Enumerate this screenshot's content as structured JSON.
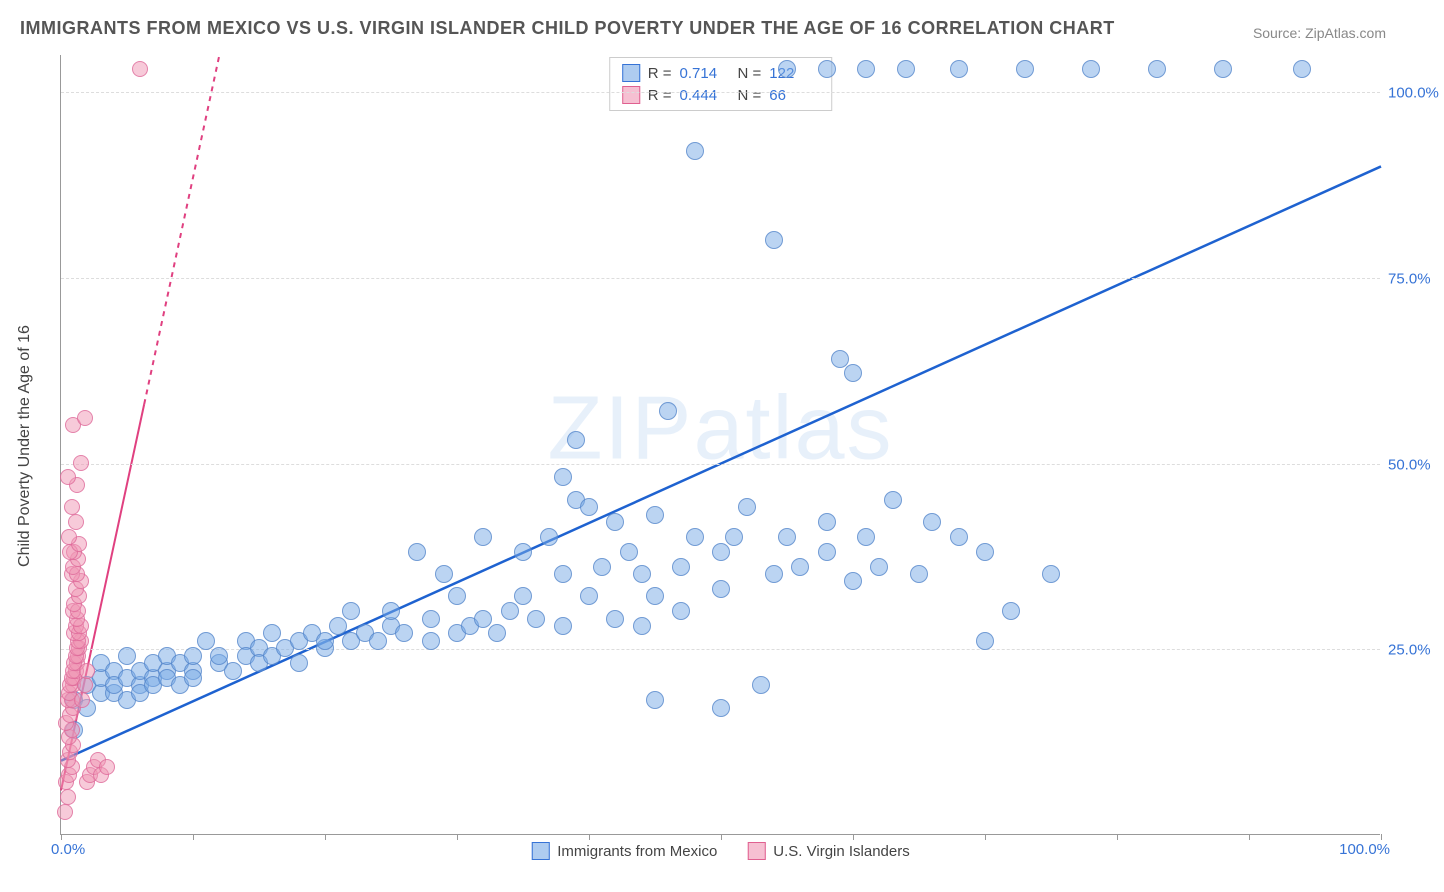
{
  "title": "IMMIGRANTS FROM MEXICO VS U.S. VIRGIN ISLANDER CHILD POVERTY UNDER THE AGE OF 16 CORRELATION CHART",
  "source_label": "Source: ZipAtlas.com",
  "y_axis_label": "Child Poverty Under the Age of 16",
  "watermark": "ZIPatlas",
  "chart": {
    "type": "scatter",
    "background_color": "#ffffff",
    "grid_color": "#dddddd",
    "axis_color": "#999999",
    "xlim": [
      0,
      100
    ],
    "ylim": [
      0,
      105
    ],
    "y_ticks": [
      25.0,
      50.0,
      75.0,
      100.0
    ],
    "y_tick_labels": [
      "25.0%",
      "50.0%",
      "75.0%",
      "100.0%"
    ],
    "x_ticks": [
      0,
      10,
      20,
      30,
      40,
      50,
      60,
      70,
      80,
      90,
      100
    ],
    "x_origin_label": "0.0%",
    "x_max_label": "100.0%",
    "series": [
      {
        "name": "Immigrants from Mexico",
        "color": "#78aae6",
        "border_color": "#3673d6",
        "marker_size": 18,
        "R": 0.714,
        "N": 122,
        "trend": {
          "x1": 0,
          "y1": 10,
          "x2": 100,
          "y2": 90,
          "color": "#1e62d0",
          "width": 2.5,
          "dash": "none"
        },
        "points": [
          [
            1,
            14
          ],
          [
            1,
            18
          ],
          [
            2,
            20
          ],
          [
            2,
            17
          ],
          [
            3,
            19
          ],
          [
            3,
            21
          ],
          [
            3,
            23
          ],
          [
            4,
            19
          ],
          [
            4,
            22
          ],
          [
            4,
            20
          ],
          [
            5,
            18
          ],
          [
            5,
            21
          ],
          [
            5,
            24
          ],
          [
            6,
            20
          ],
          [
            6,
            22
          ],
          [
            6,
            19
          ],
          [
            7,
            21
          ],
          [
            7,
            23
          ],
          [
            7,
            20
          ],
          [
            8,
            22
          ],
          [
            8,
            24
          ],
          [
            8,
            21
          ],
          [
            9,
            20
          ],
          [
            9,
            23
          ],
          [
            10,
            22
          ],
          [
            10,
            24
          ],
          [
            10,
            21
          ],
          [
            11,
            26
          ],
          [
            12,
            23
          ],
          [
            12,
            24
          ],
          [
            13,
            22
          ],
          [
            14,
            26
          ],
          [
            14,
            24
          ],
          [
            15,
            25
          ],
          [
            15,
            23
          ],
          [
            16,
            24
          ],
          [
            16,
            27
          ],
          [
            17,
            25
          ],
          [
            18,
            23
          ],
          [
            18,
            26
          ],
          [
            19,
            27
          ],
          [
            20,
            25
          ],
          [
            20,
            26
          ],
          [
            21,
            28
          ],
          [
            22,
            26
          ],
          [
            22,
            30
          ],
          [
            23,
            27
          ],
          [
            24,
            26
          ],
          [
            25,
            28
          ],
          [
            25,
            30
          ],
          [
            26,
            27
          ],
          [
            27,
            38
          ],
          [
            28,
            29
          ],
          [
            28,
            26
          ],
          [
            29,
            35
          ],
          [
            30,
            27
          ],
          [
            30,
            32
          ],
          [
            31,
            28
          ],
          [
            32,
            40
          ],
          [
            32,
            29
          ],
          [
            33,
            27
          ],
          [
            34,
            30
          ],
          [
            35,
            38
          ],
          [
            35,
            32
          ],
          [
            36,
            29
          ],
          [
            37,
            40
          ],
          [
            38,
            35
          ],
          [
            38,
            28
          ],
          [
            38,
            48
          ],
          [
            39,
            45
          ],
          [
            39,
            53
          ],
          [
            40,
            32
          ],
          [
            40,
            44
          ],
          [
            41,
            36
          ],
          [
            42,
            29
          ],
          [
            42,
            42
          ],
          [
            43,
            38
          ],
          [
            44,
            35
          ],
          [
            44,
            28
          ],
          [
            45,
            43
          ],
          [
            45,
            32
          ],
          [
            45,
            18
          ],
          [
            46,
            57
          ],
          [
            47,
            36
          ],
          [
            47,
            30
          ],
          [
            48,
            40
          ],
          [
            48,
            92
          ],
          [
            50,
            38
          ],
          [
            50,
            33
          ],
          [
            50,
            17
          ],
          [
            51,
            40
          ],
          [
            52,
            44
          ],
          [
            53,
            20
          ],
          [
            54,
            35
          ],
          [
            54,
            80
          ],
          [
            55,
            40
          ],
          [
            56,
            36
          ],
          [
            58,
            38
          ],
          [
            58,
            42
          ],
          [
            59,
            64
          ],
          [
            60,
            34
          ],
          [
            60,
            62
          ],
          [
            61,
            40
          ],
          [
            62,
            36
          ],
          [
            63,
            45
          ],
          [
            65,
            35
          ],
          [
            66,
            42
          ],
          [
            68,
            40
          ],
          [
            70,
            26
          ],
          [
            70,
            38
          ],
          [
            72,
            30
          ],
          [
            75,
            35
          ],
          [
            55,
            103
          ],
          [
            58,
            103
          ],
          [
            61,
            103
          ],
          [
            64,
            103
          ],
          [
            68,
            103
          ],
          [
            73,
            103
          ],
          [
            78,
            103
          ],
          [
            83,
            103
          ],
          [
            88,
            103
          ],
          [
            94,
            103
          ]
        ]
      },
      {
        "name": "U.S. Virgin Islanders",
        "color": "#f096b4",
        "border_color": "#e06090",
        "marker_size": 16,
        "R": 0.444,
        "N": 66,
        "trend": {
          "x1": 0,
          "y1": 6,
          "x2": 12,
          "y2": 105,
          "color": "#e04080",
          "width": 2,
          "dash": "4,4"
        },
        "trend_solid_end_y": 58,
        "points": [
          [
            0.3,
            3
          ],
          [
            0.5,
            5
          ],
          [
            0.4,
            7
          ],
          [
            0.6,
            8
          ],
          [
            0.8,
            9
          ],
          [
            0.5,
            10
          ],
          [
            0.7,
            11
          ],
          [
            0.9,
            12
          ],
          [
            0.6,
            13
          ],
          [
            0.8,
            14
          ],
          [
            0.4,
            15
          ],
          [
            0.7,
            16
          ],
          [
            0.9,
            17
          ],
          [
            0.5,
            18
          ],
          [
            0.8,
            18
          ],
          [
            0.6,
            19
          ],
          [
            0.9,
            20
          ],
          [
            0.7,
            20
          ],
          [
            1.0,
            21
          ],
          [
            0.8,
            21
          ],
          [
            1.1,
            22
          ],
          [
            0.9,
            22
          ],
          [
            1.2,
            23
          ],
          [
            1.0,
            23
          ],
          [
            1.3,
            24
          ],
          [
            1.1,
            24
          ],
          [
            1.4,
            25
          ],
          [
            1.2,
            25
          ],
          [
            1.5,
            26
          ],
          [
            1.3,
            26
          ],
          [
            1.0,
            27
          ],
          [
            1.4,
            27
          ],
          [
            1.1,
            28
          ],
          [
            1.5,
            28
          ],
          [
            1.2,
            29
          ],
          [
            0.9,
            30
          ],
          [
            1.3,
            30
          ],
          [
            1.0,
            31
          ],
          [
            1.4,
            32
          ],
          [
            1.1,
            33
          ],
          [
            1.5,
            34
          ],
          [
            0.8,
            35
          ],
          [
            1.2,
            35
          ],
          [
            0.9,
            36
          ],
          [
            1.3,
            37
          ],
          [
            1.0,
            38
          ],
          [
            0.7,
            38
          ],
          [
            1.4,
            39
          ],
          [
            0.6,
            40
          ],
          [
            1.1,
            42
          ],
          [
            0.8,
            44
          ],
          [
            1.2,
            47
          ],
          [
            0.5,
            48
          ],
          [
            1.5,
            50
          ],
          [
            0.9,
            55
          ],
          [
            1.8,
            56
          ],
          [
            2.0,
            7
          ],
          [
            2.2,
            8
          ],
          [
            2.5,
            9
          ],
          [
            2.8,
            10
          ],
          [
            3.0,
            8
          ],
          [
            3.5,
            9
          ],
          [
            1.6,
            18
          ],
          [
            1.8,
            20
          ],
          [
            2.0,
            22
          ],
          [
            6,
            103
          ]
        ]
      }
    ]
  },
  "legend_top": {
    "rows": [
      {
        "swatch": "blue",
        "R_label": "R =",
        "R_val": "0.714",
        "N_label": "N =",
        "N_val": "122"
      },
      {
        "swatch": "pink",
        "R_label": "R =",
        "R_val": "0.444",
        "N_label": "N =",
        "N_val": "66"
      }
    ]
  },
  "legend_bottom": {
    "items": [
      {
        "swatch": "blue",
        "label": "Immigrants from Mexico"
      },
      {
        "swatch": "pink",
        "label": "U.S. Virgin Islanders"
      }
    ]
  }
}
